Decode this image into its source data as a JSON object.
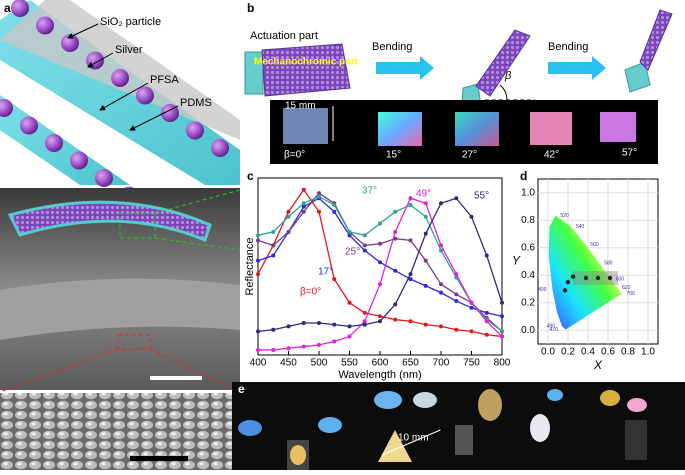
{
  "panel_labels": [
    "a",
    "b",
    "c",
    "d",
    "e"
  ],
  "panel_a": {
    "layer_labels": [
      "SiO₂ particle",
      "Silver",
      "PFSA",
      "PDMS"
    ]
  },
  "panel_b": {
    "actuation_label": "Actuation part",
    "block_label": "Mechanochromic part",
    "step_labels": [
      "Bending",
      "Bending"
    ],
    "angle_symbol": "β",
    "scale_label": "15 mm",
    "photo_labels": [
      "β=0°",
      "15°",
      "27°",
      "42°",
      "57°"
    ]
  },
  "panel_e": {
    "scale_label": "10 mm"
  },
  "chart_data": [
    {
      "type": "line",
      "xlabel": "Wavelength (nm)",
      "ylabel": "Reflectance",
      "x": [
        400,
        425,
        450,
        475,
        500,
        525,
        550,
        575,
        600,
        625,
        650,
        675,
        700,
        725,
        750,
        775,
        800
      ],
      "xlim": [
        400,
        800
      ],
      "xticks": [
        400,
        450,
        500,
        550,
        600,
        650,
        700,
        750,
        800
      ],
      "ylim": [
        0,
        1.05
      ],
      "series": [
        {
          "name": "β=0°",
          "color": "#e8141c",
          "values": [
            0.48,
            0.65,
            0.85,
            0.98,
            0.85,
            0.45,
            0.31,
            0.25,
            0.23,
            0.21,
            0.2,
            0.18,
            0.17,
            0.15,
            0.14,
            0.12,
            0.11
          ]
        },
        {
          "name": "17°",
          "color": "#2a2adc",
          "values": [
            0.56,
            0.59,
            0.73,
            0.88,
            0.93,
            0.85,
            0.71,
            0.62,
            0.55,
            0.5,
            0.45,
            0.41,
            0.37,
            0.32,
            0.28,
            0.25,
            0.23
          ]
        },
        {
          "name": "25°",
          "color": "#7a3a8a",
          "values": [
            0.68,
            0.65,
            0.73,
            0.85,
            0.96,
            0.9,
            0.73,
            0.65,
            0.66,
            0.69,
            0.68,
            0.56,
            0.42,
            0.36,
            0.31,
            0.22,
            0.14
          ]
        },
        {
          "name": "37°",
          "color": "#2ca58d",
          "values": [
            0.71,
            0.73,
            0.82,
            0.9,
            0.94,
            0.89,
            0.73,
            0.71,
            0.78,
            0.85,
            0.89,
            0.82,
            0.62,
            0.46,
            0.31,
            0.21,
            0.14
          ]
        },
        {
          "name": "49°",
          "color": "#e020e0",
          "values": [
            0.03,
            0.03,
            0.04,
            0.05,
            0.06,
            0.08,
            0.11,
            0.2,
            0.42,
            0.73,
            0.93,
            0.9,
            0.65,
            0.48,
            0.31,
            0.2,
            0.11
          ]
        },
        {
          "name": "55°",
          "color": "#2b2b7a",
          "values": [
            0.14,
            0.15,
            0.17,
            0.19,
            0.19,
            0.18,
            0.17,
            0.18,
            0.2,
            0.3,
            0.48,
            0.72,
            0.9,
            0.93,
            0.82,
            0.59,
            0.31
          ]
        }
      ]
    },
    {
      "type": "scatter",
      "xlabel": "X",
      "ylabel": "Y",
      "xlim": [
        -0.1,
        1.1
      ],
      "ylim": [
        -0.1,
        1.1
      ],
      "xticks": [
        {
          "value": 0,
          "label": "0.0"
        },
        0.2,
        0.4,
        0.6,
        0.8,
        {
          "value": 1,
          "label": "1.0"
        }
      ],
      "yticks": [
        {
          "value": 0,
          "label": "0.0"
        },
        0.2,
        0.4,
        0.6,
        0.8,
        {
          "value": 1,
          "label": "1.0"
        }
      ],
      "grid": true,
      "color": "#222222",
      "x": [
        0.17,
        0.2,
        0.25,
        0.38,
        0.5,
        0.62
      ],
      "values": [
        0.29,
        0.35,
        0.39,
        0.38,
        0.38,
        0.38
      ],
      "locus_labels": [
        "520",
        "540",
        "560",
        "580",
        "600",
        "620",
        "700",
        "490",
        "480",
        "470"
      ]
    }
  ]
}
